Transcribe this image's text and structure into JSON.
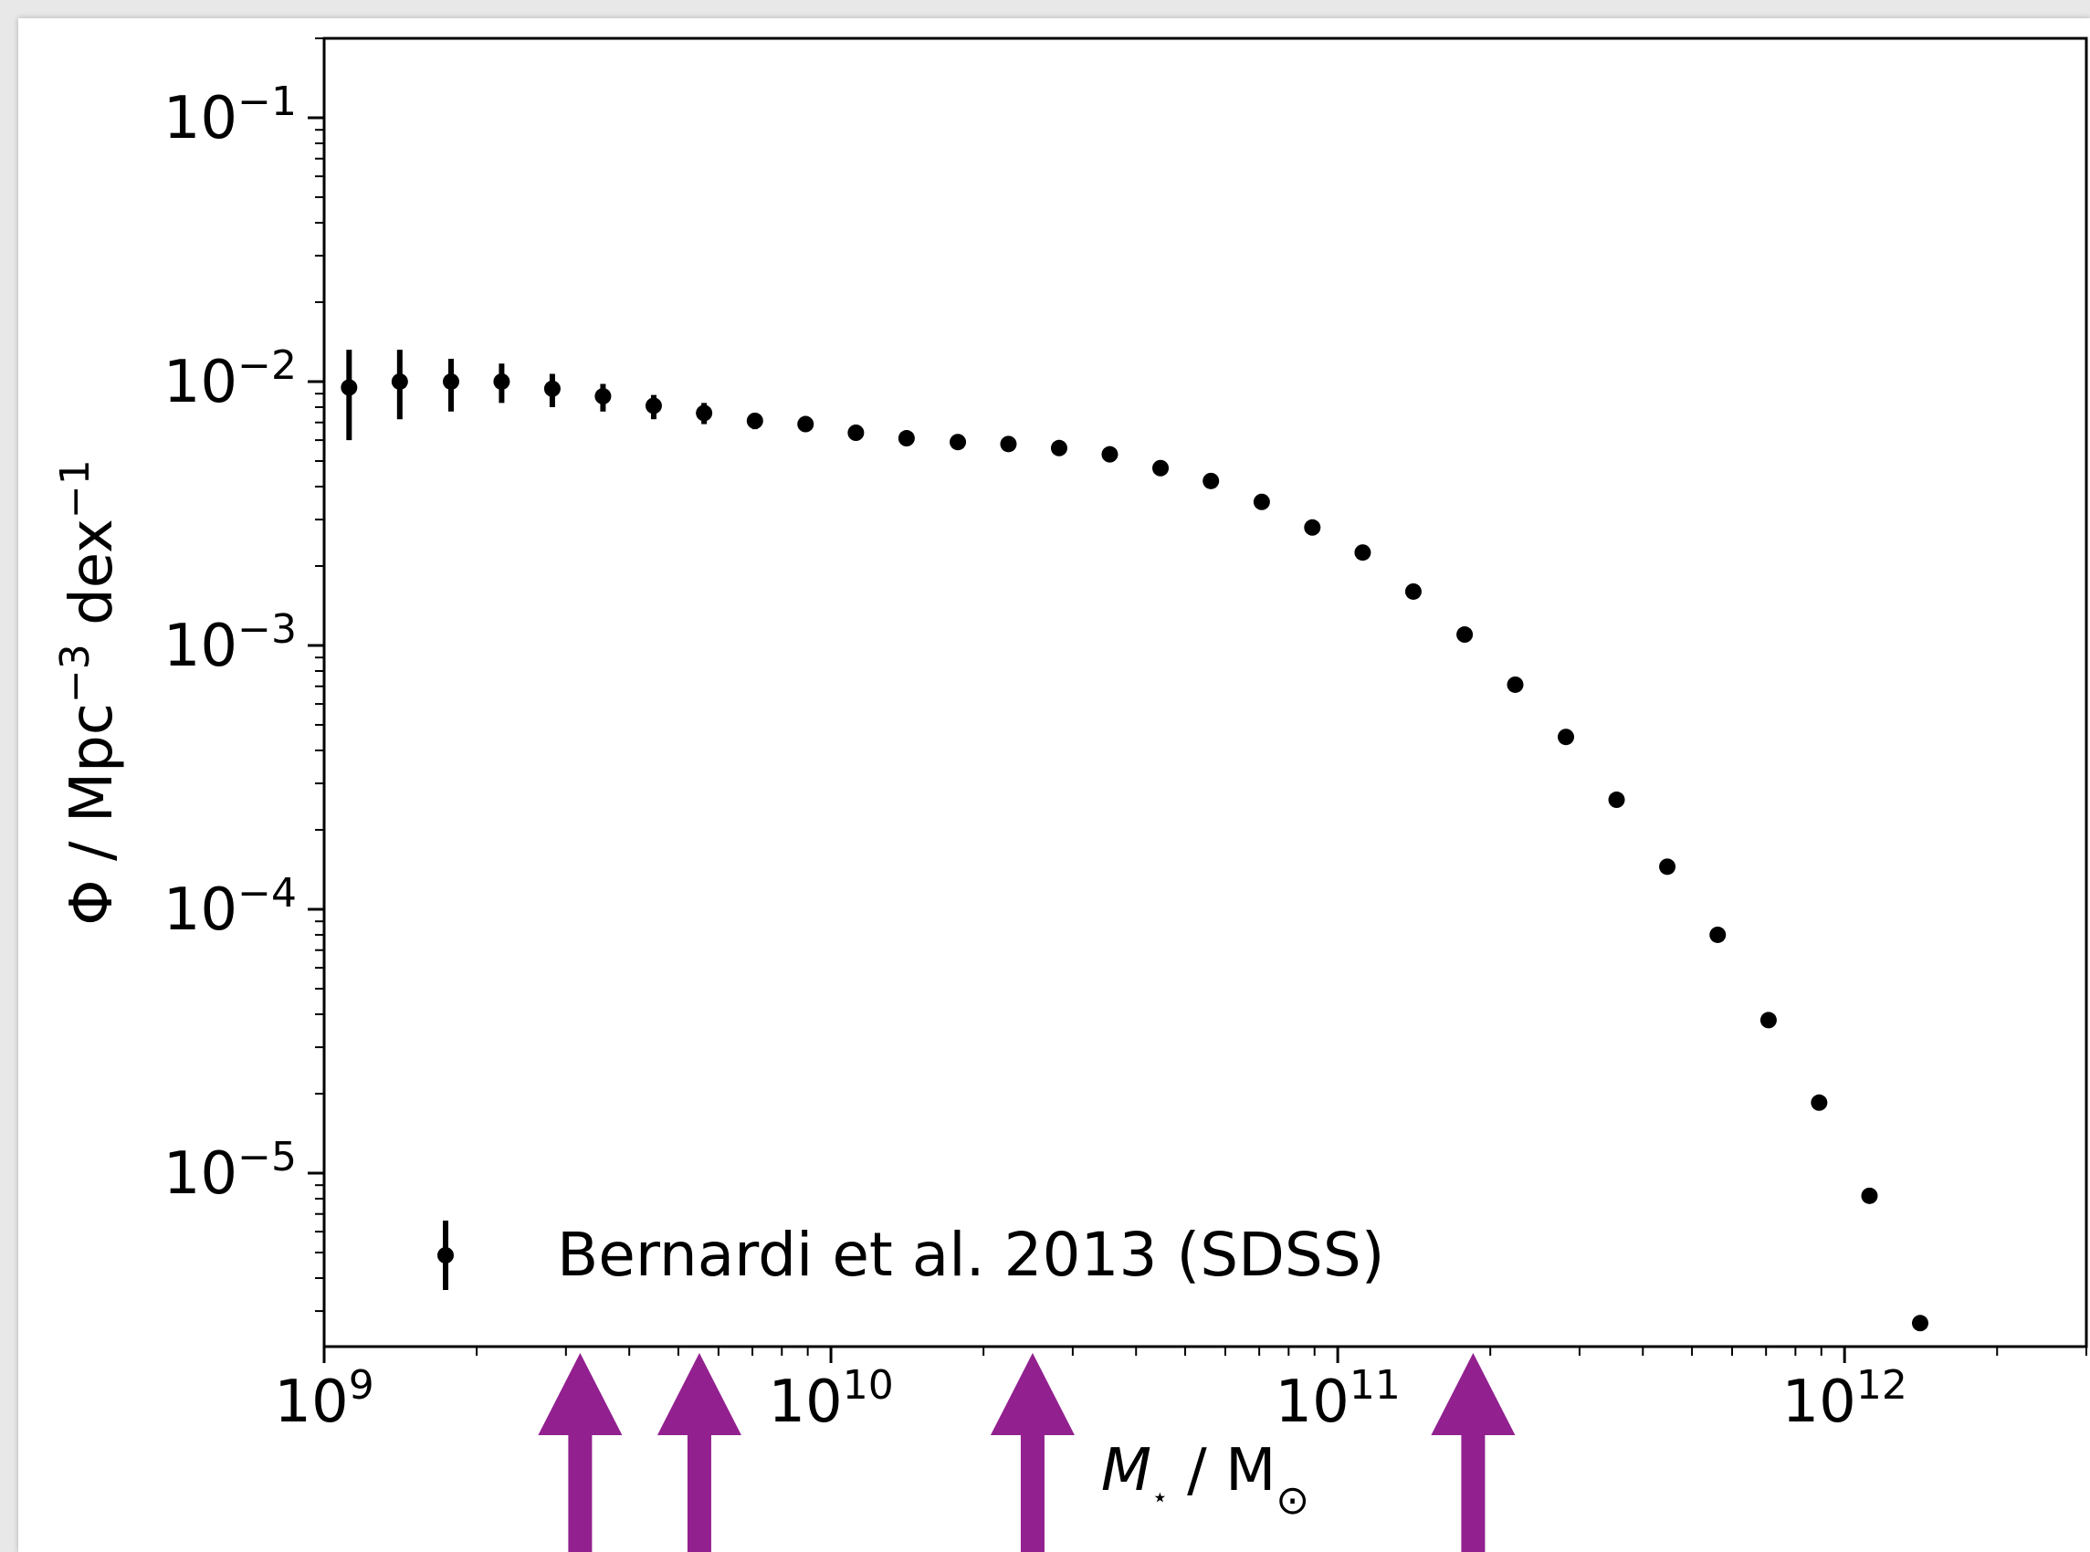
{
  "chart_data": {
    "type": "scatter",
    "title": "",
    "xlabel": {
      "base": "M",
      "sub": "⋆",
      "sep": " / ",
      "unit": "M",
      "unit_sub": "⊙"
    },
    "ylabel": {
      "symbol": "Φ",
      "sep": " / ",
      "unit1": "Mpc",
      "exp1": "−3",
      "unit2": " dex",
      "exp2": "−1"
    },
    "x_scale": "log",
    "y_scale": "log",
    "xlim": [
      1000000000.0,
      3000000000000.0
    ],
    "ylim": [
      2.2e-06,
      0.2
    ],
    "x_ticks": [
      {
        "base": "10",
        "exp": "9",
        "value": 1000000000.0
      },
      {
        "base": "10",
        "exp": "10",
        "value": 10000000000.0
      },
      {
        "base": "10",
        "exp": "11",
        "value": 100000000000.0
      },
      {
        "base": "10",
        "exp": "12",
        "value": 1000000000000.0
      }
    ],
    "y_ticks": [
      {
        "base": "10",
        "exp": "−1",
        "value": 0.1
      },
      {
        "base": "10",
        "exp": "−2",
        "value": 0.01
      },
      {
        "base": "10",
        "exp": "−3",
        "value": 0.001
      },
      {
        "base": "10",
        "exp": "−4",
        "value": 0.0001
      },
      {
        "base": "10",
        "exp": "−5",
        "value": 1e-05
      }
    ],
    "legend": {
      "placement": "lower-left",
      "label": "Bernardi et al. 2013 (SDSS)"
    },
    "series": [
      {
        "name": "Bernardi et al. 2013 (SDSS)",
        "color": "#000000",
        "points": [
          {
            "x": 1120000000.0,
            "y": 0.0095,
            "ylo": 0.006,
            "yhi": 0.0132
          },
          {
            "x": 1410000000.0,
            "y": 0.01,
            "ylo": 0.0072,
            "yhi": 0.0132
          },
          {
            "x": 1780000000.0,
            "y": 0.01,
            "ylo": 0.0077,
            "yhi": 0.0122
          },
          {
            "x": 2240000000.0,
            "y": 0.01,
            "ylo": 0.0083,
            "yhi": 0.0117
          },
          {
            "x": 2820000000.0,
            "y": 0.0094,
            "ylo": 0.008,
            "yhi": 0.0107
          },
          {
            "x": 3550000000.0,
            "y": 0.0088,
            "ylo": 0.0077,
            "yhi": 0.0098
          },
          {
            "x": 4470000000.0,
            "y": 0.0081,
            "ylo": 0.0072,
            "yhi": 0.0089
          },
          {
            "x": 5620000000.0,
            "y": 0.0076,
            "ylo": 0.0069,
            "yhi": 0.0083
          },
          {
            "x": 7080000000.0,
            "y": 0.0071,
            "ylo": 0.0066,
            "yhi": 0.0076
          },
          {
            "x": 8910000000.0,
            "y": 0.0069,
            "ylo": 0.0065,
            "yhi": 0.0073
          },
          {
            "x": 11200000000.0,
            "y": 0.0064
          },
          {
            "x": 14100000000.0,
            "y": 0.0061
          },
          {
            "x": 17800000000.0,
            "y": 0.0059
          },
          {
            "x": 22400000000.0,
            "y": 0.0058
          },
          {
            "x": 28200000000.0,
            "y": 0.0056
          },
          {
            "x": 35500000000.0,
            "y": 0.0053
          },
          {
            "x": 44700000000.0,
            "y": 0.0047
          },
          {
            "x": 56200000000.0,
            "y": 0.0042
          },
          {
            "x": 70800000000.0,
            "y": 0.0035
          },
          {
            "x": 89100000000.0,
            "y": 0.0028
          },
          {
            "x": 112000000000.0,
            "y": 0.00225
          },
          {
            "x": 141000000000.0,
            "y": 0.0016
          },
          {
            "x": 178000000000.0,
            "y": 0.0011
          },
          {
            "x": 224000000000.0,
            "y": 0.00071
          },
          {
            "x": 282000000000.0,
            "y": 0.00045
          },
          {
            "x": 355000000000.0,
            "y": 0.00026
          },
          {
            "x": 447000000000.0,
            "y": 0.000145
          },
          {
            "x": 562000000000.0,
            "y": 8e-05
          },
          {
            "x": 708000000000.0,
            "y": 3.8e-05
          },
          {
            "x": 891000000000.0,
            "y": 1.85e-05
          },
          {
            "x": 1120000000000.0,
            "y": 8.2e-06
          },
          {
            "x": 1410000000000.0,
            "y": 2.7e-06
          }
        ]
      }
    ],
    "annotations": {
      "arrow_color": "#92208f",
      "arrows_at_x": [
        3200000000.0,
        5500000000.0,
        25000000000.0,
        185000000000.0
      ]
    }
  }
}
